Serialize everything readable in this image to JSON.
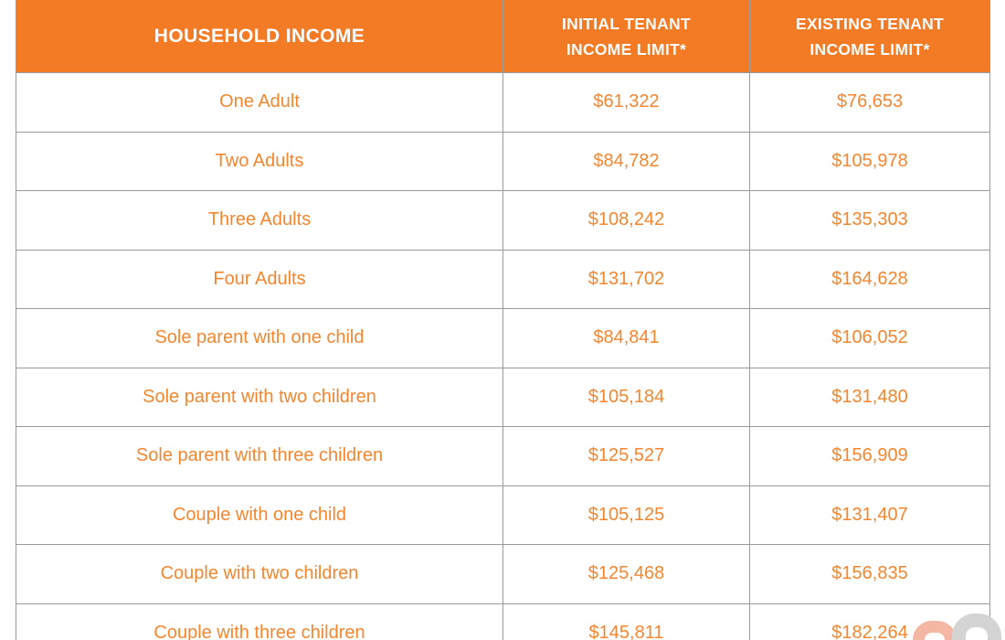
{
  "brand": {
    "header_bg": "#f47b25",
    "accent_text": "#f5862e",
    "border_color": "#9a9a9a",
    "watermark_left_color": "#f4b7a4",
    "watermark_right_color": "#d4d4d4"
  },
  "table": {
    "header_col1": "HOUSEHOLD INCOME",
    "header_col2": {
      "l1": "INITIAL TENANT",
      "l2": "INCOME LIMIT*"
    },
    "header_col3": {
      "l1": "EXISTING TENANT",
      "l2": "INCOME LIMIT*"
    },
    "rows": [
      {
        "label": "One Adult",
        "initial": "$61,322",
        "existing": "$76,653"
      },
      {
        "label": "Two Adults",
        "initial": "$84,782",
        "existing": "$105,978"
      },
      {
        "label": "Three Adults",
        "initial": "$108,242",
        "existing": "$135,303"
      },
      {
        "label": "Four Adults",
        "initial": "$131,702",
        "existing": "$164,628"
      },
      {
        "label": "Sole parent with one child",
        "initial": "$84,841",
        "existing": "$106,052"
      },
      {
        "label": "Sole parent with two children",
        "initial": "$105,184",
        "existing": "$131,480"
      },
      {
        "label": "Sole parent with three children",
        "initial": "$125,527",
        "existing": "$156,909"
      },
      {
        "label": "Couple with one child",
        "initial": "$105,125",
        "existing": "$131,407"
      },
      {
        "label": "Couple with two children",
        "initial": "$125,468",
        "existing": "$156,835"
      },
      {
        "label": "Couple with three children",
        "initial": "$145,811",
        "existing": "$182,264"
      }
    ]
  },
  "chart_data": {
    "type": "table",
    "columns": [
      "HOUSEHOLD INCOME",
      "INITIAL TENANT INCOME LIMIT*",
      "EXISTING TENANT INCOME LIMIT*"
    ],
    "rows": [
      [
        "One Adult",
        61322,
        76653
      ],
      [
        "Two Adults",
        84782,
        105978
      ],
      [
        "Three Adults",
        108242,
        135303
      ],
      [
        "Four Adults",
        131702,
        164628
      ],
      [
        "Sole parent with one child",
        84841,
        106052
      ],
      [
        "Sole parent with two children",
        105184,
        131480
      ],
      [
        "Sole parent with three children",
        125527,
        156909
      ],
      [
        "Couple with one child",
        105125,
        131407
      ],
      [
        "Couple with two children",
        125468,
        156835
      ],
      [
        "Couple with three children",
        145811,
        182264
      ]
    ],
    "title": ""
  }
}
